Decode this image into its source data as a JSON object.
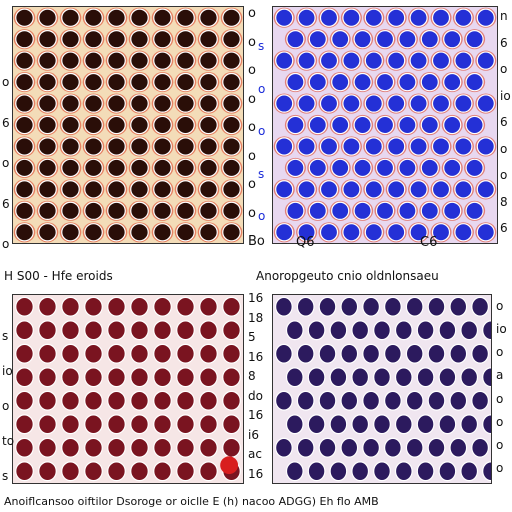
{
  "captions": {
    "middle_left": "H S00 - Hfe eroids",
    "middle_right": "Anoropgeuto cnio oldnlonsaeu",
    "bottom": "Anoiflcansoo oiftilor Dsoroge or oiclle E (h) nacoo ADGG) Eh flo AMB"
  },
  "tick_labels": {
    "panel_a_left": [
      "o",
      "6",
      "o",
      "6",
      "o"
    ],
    "panel_a_right": [
      "o",
      "o",
      "o",
      "o",
      "o",
      "o",
      "o",
      "o",
      "Bo"
    ],
    "panel_b_left": [
      "s",
      "o",
      "o",
      "s",
      "o"
    ],
    "panel_b_right": [
      "n",
      "6",
      "o",
      "io",
      "6",
      "o",
      "o",
      "8",
      "6"
    ],
    "panel_c_left": [
      "s",
      "io",
      "o",
      "to",
      "s"
    ],
    "panel_c_right": [
      "16",
      "18",
      "5",
      "16",
      "8",
      "do",
      "16",
      "i6",
      "ac",
      "16"
    ],
    "panel_d_right": [
      "o",
      "io",
      "o",
      "a",
      "o",
      "o",
      "o",
      "o"
    ],
    "panel_b_bottom": [
      "Q6",
      "C6"
    ]
  },
  "colors": {
    "panel_a_fill": "#2a0e08",
    "panel_a_bg": "#f3dcb8",
    "panel_a_accent": "#d9391c",
    "panel_b_fill": "#2430d6",
    "panel_b_bg": "#e8d8f0",
    "panel_b_accent": "#d9391c",
    "panel_c_fill": "#7a1420",
    "panel_c_bg": "#f6e6e6",
    "panel_d_fill": "#2c1a5e",
    "panel_d_bg": "#f0e6f0"
  }
}
